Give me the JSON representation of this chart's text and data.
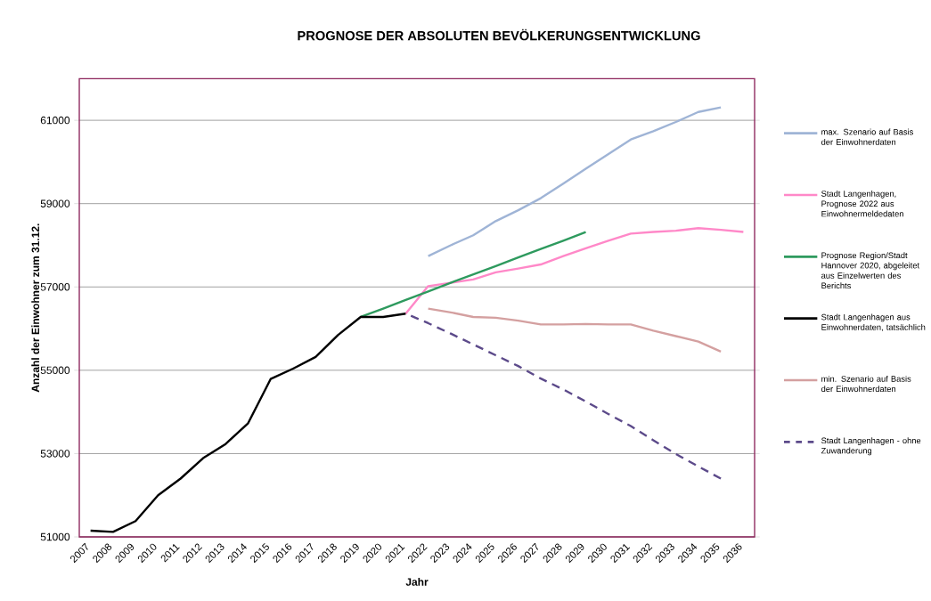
{
  "chart_data": {
    "type": "line",
    "title": "PROGNOSE DER ABSOLUTEN BEVÖLKERUNGSENTWICKLUNG",
    "xlabel": "Jahr",
    "ylabel": "Anzahl der Einwohner zum 31.12.",
    "categories": [
      "2007",
      "2008",
      "2009",
      "2010",
      "2011",
      "2012",
      "2013",
      "2014",
      "2015",
      "2016",
      "2017",
      "2018",
      "2019",
      "2020",
      "2021",
      "2022",
      "2023",
      "2024",
      "2025",
      "2026",
      "2027",
      "2028",
      "2029",
      "2030",
      "2031",
      "2032",
      "2033",
      "2034",
      "2035",
      "2036"
    ],
    "ylim": [
      51000,
      62000
    ],
    "yticks": [
      51000,
      53000,
      55000,
      57000,
      59000,
      61000
    ],
    "grid": "y",
    "legend": "right",
    "series": [
      {
        "name": "max. Szenario auf Basis der Einwohnerdaten",
        "color": "#9fb4d6",
        "values": [
          null,
          null,
          null,
          null,
          null,
          null,
          null,
          null,
          null,
          null,
          null,
          null,
          null,
          null,
          null,
          57740,
          58000,
          58240,
          58580,
          58840,
          59130,
          59480,
          59840,
          60190,
          60540,
          60740,
          60960,
          61200,
          61310,
          null
        ]
      },
      {
        "name": "Stadt Langenhagen, Prognose 2022 aus Einwohnermeldedaten",
        "color": "#ff88c8",
        "values": [
          null,
          null,
          null,
          null,
          null,
          null,
          null,
          null,
          null,
          null,
          null,
          null,
          null,
          null,
          56360,
          57020,
          57100,
          57180,
          57350,
          57440,
          57540,
          57740,
          57930,
          58110,
          58280,
          58320,
          58350,
          58410,
          58370,
          58320
        ]
      },
      {
        "name": "Prognose Region/Stadt Hannover 2020, abgeleitet aus Einzelwerten des Berichts",
        "color": "#2e9a5e",
        "values": [
          null,
          null,
          null,
          null,
          null,
          null,
          null,
          null,
          null,
          null,
          null,
          null,
          56280,
          56480,
          56690,
          56890,
          57100,
          57300,
          57500,
          57710,
          57910,
          58110,
          58320,
          null,
          null,
          null,
          null,
          null,
          null,
          null
        ]
      },
      {
        "name": "Stadt Langenhagen aus Einwohnerdaten, tatsächlich",
        "color": "#000000",
        "values": [
          51150,
          51120,
          51380,
          52000,
          52400,
          52890,
          53230,
          53730,
          54790,
          55040,
          55320,
          55850,
          56280,
          56280,
          56360,
          null,
          null,
          null,
          null,
          null,
          null,
          null,
          null,
          null,
          null,
          null,
          null,
          null,
          null,
          null
        ]
      },
      {
        "name": "min. Szenario auf Basis der Einwohnerdaten",
        "color": "#d4a0a0",
        "values": [
          null,
          null,
          null,
          null,
          null,
          null,
          null,
          null,
          null,
          null,
          null,
          null,
          null,
          null,
          null,
          56480,
          56390,
          56280,
          56260,
          56190,
          56100,
          56100,
          56110,
          56100,
          56100,
          55950,
          55820,
          55690,
          55450,
          null
        ]
      },
      {
        "name": "Stadt Langenhagen - ohne Zuwanderung",
        "color": "#5c4a8a",
        "line_style": "dashed",
        "values": [
          null,
          null,
          null,
          null,
          null,
          null,
          null,
          null,
          null,
          null,
          null,
          null,
          null,
          null,
          56360,
          56130,
          55880,
          55620,
          55360,
          55100,
          54800,
          54540,
          54250,
          53950,
          53660,
          53320,
          52990,
          52690,
          52400,
          null
        ]
      }
    ]
  }
}
